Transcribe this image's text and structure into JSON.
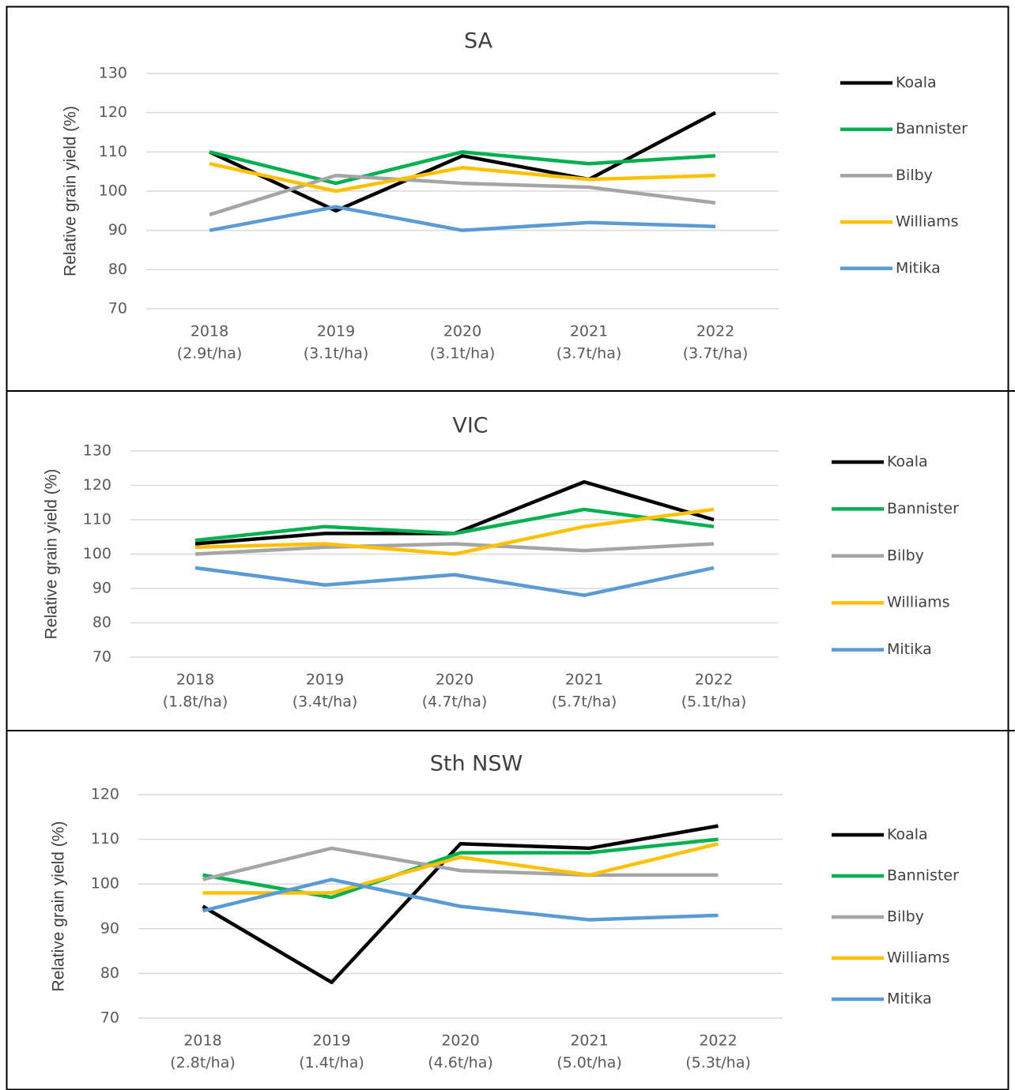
{
  "chart_data": [
    {
      "type": "line",
      "title": "SA",
      "y_label": "Relative grain yield (%)",
      "categories": [
        [
          "2018",
          "(2.9t/ha)"
        ],
        [
          "2019",
          "(3.1t/ha)"
        ],
        [
          "2020",
          "(3.1t/ha)"
        ],
        [
          "2021",
          "(3.7t/ha)"
        ],
        [
          "2022",
          "(3.7t/ha)"
        ]
      ],
      "ylim": [
        70,
        130
      ],
      "yticks": [
        70,
        80,
        90,
        100,
        110,
        120,
        130
      ],
      "grid": true,
      "legend": "right",
      "series": [
        {
          "name": "Koala",
          "color": "#000000",
          "values": [
            110,
            95,
            109,
            103,
            120
          ]
        },
        {
          "name": "Bannister",
          "color": "#00b050",
          "values": [
            110,
            102,
            110,
            107,
            109
          ]
        },
        {
          "name": "Bilby",
          "color": "#a5a5a5",
          "values": [
            94,
            104,
            102,
            101,
            97
          ]
        },
        {
          "name": "Williams",
          "color": "#ffc000",
          "values": [
            107,
            100,
            106,
            103,
            104
          ]
        },
        {
          "name": "Mitika",
          "color": "#5b9bd5",
          "values": [
            90,
            96,
            90,
            92,
            91
          ]
        }
      ]
    },
    {
      "type": "line",
      "title": "VIC",
      "y_label": "Relative grain yield (%)",
      "categories": [
        [
          "2018",
          "(1.8t/ha)"
        ],
        [
          "2019",
          "(3.4t/ha)"
        ],
        [
          "2020",
          "(4.7t/ha)"
        ],
        [
          "2021",
          "(5.7t/ha)"
        ],
        [
          "2022",
          "(5.1t/ha)"
        ]
      ],
      "ylim": [
        70,
        130
      ],
      "yticks": [
        70,
        80,
        90,
        100,
        110,
        120,
        130
      ],
      "grid": true,
      "legend": "right",
      "series": [
        {
          "name": "Koala",
          "color": "#000000",
          "values": [
            103,
            106,
            106,
            121,
            110
          ]
        },
        {
          "name": "Bannister",
          "color": "#00b050",
          "values": [
            104,
            108,
            106,
            113,
            108
          ]
        },
        {
          "name": "Bilby",
          "color": "#a5a5a5",
          "values": [
            100,
            102,
            103,
            101,
            103
          ]
        },
        {
          "name": "Williams",
          "color": "#ffc000",
          "values": [
            102,
            103,
            100,
            108,
            113
          ]
        },
        {
          "name": "Mitika",
          "color": "#5b9bd5",
          "values": [
            96,
            91,
            94,
            88,
            96
          ]
        }
      ]
    },
    {
      "type": "line",
      "title": "Sth NSW",
      "y_label": "Relative grain yield (%)",
      "categories": [
        [
          "2018",
          "(2.8t/ha)"
        ],
        [
          "2019",
          "(1.4t/ha)"
        ],
        [
          "2020",
          "(4.6t/ha)"
        ],
        [
          "2021",
          "(5.0t/ha)"
        ],
        [
          "2022",
          "(5.3t/ha)"
        ]
      ],
      "ylim": [
        70,
        120
      ],
      "yticks": [
        70,
        80,
        90,
        100,
        110,
        120
      ],
      "grid": true,
      "legend": "right",
      "series": [
        {
          "name": "Koala",
          "color": "#000000",
          "values": [
            95,
            78,
            109,
            108,
            113
          ]
        },
        {
          "name": "Bannister",
          "color": "#00b050",
          "values": [
            102,
            97,
            107,
            107,
            110
          ]
        },
        {
          "name": "Bilby",
          "color": "#a5a5a5",
          "values": [
            101,
            108,
            103,
            102,
            102
          ]
        },
        {
          "name": "Williams",
          "color": "#ffc000",
          "values": [
            98,
            98,
            106,
            102,
            109
          ]
        },
        {
          "name": "Mitika",
          "color": "#5b9bd5",
          "values": [
            94,
            101,
            95,
            92,
            93
          ]
        }
      ]
    }
  ]
}
